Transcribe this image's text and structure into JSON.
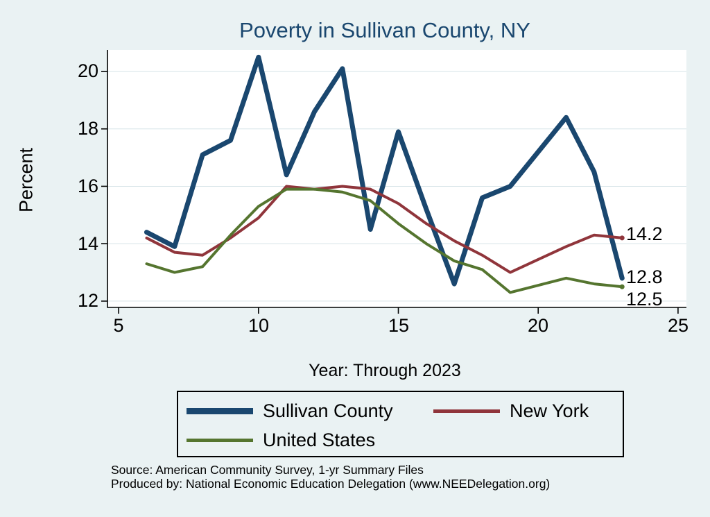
{
  "title": "Poverty in Sullivan County, NY",
  "axes": {
    "ylabel": "Percent",
    "xlabel": "Year: Through 2023",
    "x_ticks": [
      "5",
      "10",
      "15",
      "20",
      "25"
    ],
    "y_ticks": [
      "20",
      "18",
      "16",
      "14",
      "12"
    ]
  },
  "colors": {
    "title": "#1a476f",
    "background": "#eaf2f3",
    "plot_background": "#ffffff",
    "gridline": "#d6e3e7",
    "axis": "#000000"
  },
  "footer": {
    "source": "Source: American Community Survey, 1-yr Summary Files",
    "produced": "Produced by: National Economic Education Delegation (www.NEEDelegation.org)"
  },
  "chart_data": {
    "type": "line",
    "title": "Poverty in Sullivan County, NY",
    "xlabel": "Year: Through 2023",
    "ylabel": "Percent",
    "xlim": [
      4.6,
      25.3
    ],
    "ylim": [
      11.78,
      20.75
    ],
    "x_ticks": [
      5,
      10,
      15,
      20,
      25
    ],
    "y_ticks": [
      12,
      14,
      16,
      18,
      20
    ],
    "grid": "horizontal",
    "legend_position": "bottom",
    "x": [
      6,
      7,
      8,
      9,
      10,
      11,
      12,
      13,
      14,
      15,
      16,
      17,
      18,
      19,
      21,
      22,
      23
    ],
    "series": [
      {
        "name": "Sullivan County",
        "color": "#1a476f",
        "width": 7,
        "values": [
          14.4,
          13.9,
          17.1,
          17.6,
          20.5,
          16.4,
          18.6,
          20.1,
          14.5,
          17.9,
          15.2,
          12.6,
          15.6,
          16.0,
          18.4,
          16.5,
          12.8
        ],
        "end_label": "12.8"
      },
      {
        "name": "New York",
        "color": "#90353b",
        "width": 4,
        "values": [
          14.2,
          13.7,
          13.6,
          14.2,
          14.9,
          16.0,
          15.9,
          16.0,
          15.9,
          15.4,
          14.7,
          14.1,
          13.6,
          13.0,
          13.9,
          14.3,
          14.2
        ],
        "end_label": "14.2"
      },
      {
        "name": "United States",
        "color": "#55752f",
        "width": 4,
        "values": [
          13.3,
          13.0,
          13.2,
          14.3,
          15.3,
          15.9,
          15.9,
          15.8,
          15.5,
          14.7,
          14.0,
          13.4,
          13.1,
          12.3,
          12.8,
          12.6,
          12.5
        ],
        "end_label": "12.5"
      }
    ]
  }
}
